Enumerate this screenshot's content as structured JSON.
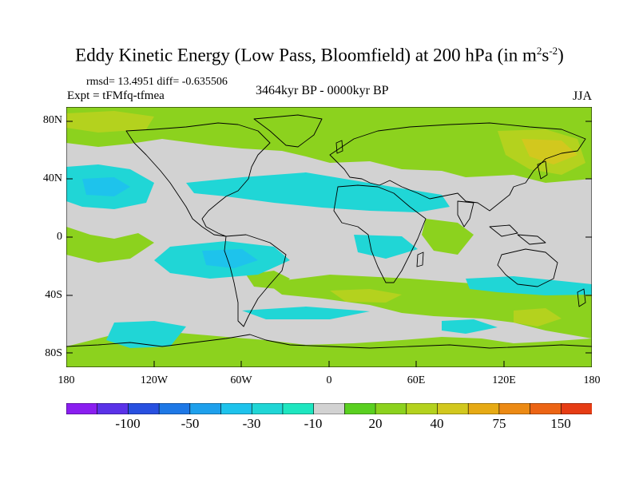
{
  "title": {
    "main": "Eddy Kinetic Energy (Low Pass, Bloomfield) at 200 hPa (in m",
    "sup1": "2",
    "mid": "s",
    "sup2": "-2",
    "end": ")"
  },
  "stats": "rmsd= 13.4951 diff= -0.635506",
  "experiment": "Expt = tFMfq-tfmea",
  "period": "3464kyr BP - 0000kyr BP",
  "season": "JJA",
  "lat_labels": [
    "80N",
    "40N",
    "0",
    "40S",
    "80S"
  ],
  "lon_labels": [
    "180",
    "120W",
    "60W",
    "0",
    "60E",
    "120E",
    "180"
  ],
  "colorbar": {
    "colors": [
      "#8a1ef0",
      "#5a32e8",
      "#2850e0",
      "#1e78e6",
      "#1ea0ec",
      "#1ec3ec",
      "#20d6d6",
      "#1ee6c0",
      "#d2d2d2",
      "#5ad020",
      "#8cd21e",
      "#b4d21e",
      "#d2c81e",
      "#e6aa14",
      "#ec8a14",
      "#ec6414",
      "#e63c14"
    ],
    "labels": [
      "-100",
      "-50",
      "-30",
      "-10",
      "20",
      "40",
      "75",
      "150"
    ]
  },
  "map_colors": {
    "background": "#d2d2d2",
    "positive": "#8cd21e",
    "positive_strong": "#b4d21e",
    "positive_max": "#d2c81e",
    "negative": "#20d6d6",
    "negative_strong": "#1ec3ec",
    "coast": "#000000"
  }
}
